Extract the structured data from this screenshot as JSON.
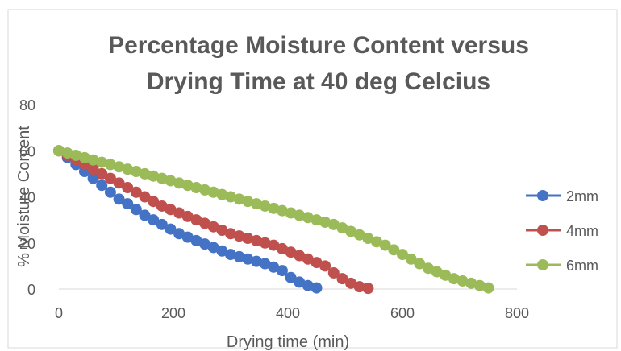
{
  "chart_data": {
    "type": "scatter",
    "title": "Percentage Moisture Content versus Drying Time at 40 deg Celcius",
    "title_lines": [
      "Percentage Moisture Content versus",
      "Drying Time at 40 deg Celcius"
    ],
    "xlabel": "Drying time (min)",
    "ylabel": "% Moisture Content",
    "xlim": [
      0,
      800
    ],
    "ylim": [
      0,
      80
    ],
    "x_ticks": [
      "0",
      "200",
      "400",
      "600",
      "800"
    ],
    "y_ticks": [
      "0",
      "20",
      "40",
      "60",
      "80"
    ],
    "grid": false,
    "legend_position": "right",
    "series": [
      {
        "name": "2mm",
        "color": "#4472C4",
        "x": [
          0,
          15,
          30,
          45,
          60,
          75,
          90,
          105,
          120,
          135,
          150,
          165,
          180,
          195,
          210,
          225,
          240,
          255,
          270,
          285,
          300,
          315,
          330,
          345,
          360,
          375,
          390,
          405,
          420,
          435,
          450
        ],
        "y": [
          60,
          57,
          54,
          51,
          48,
          45,
          42,
          39,
          37,
          34.5,
          32,
          30,
          28,
          26,
          24,
          22.5,
          21,
          19.5,
          18,
          16.5,
          15,
          14,
          13,
          12,
          11,
          9.5,
          8,
          5,
          3,
          1.5,
          0.5
        ]
      },
      {
        "name": "4mm",
        "color": "#C0504D",
        "x": [
          0,
          15,
          30,
          45,
          60,
          75,
          90,
          105,
          120,
          135,
          150,
          165,
          180,
          195,
          210,
          225,
          240,
          255,
          270,
          285,
          300,
          315,
          330,
          345,
          360,
          375,
          390,
          405,
          420,
          435,
          450,
          465,
          480,
          495,
          510,
          525,
          540
        ],
        "y": [
          60,
          58,
          56,
          54,
          52,
          50,
          48,
          46,
          44,
          42,
          40,
          38,
          36,
          34.5,
          33,
          31.5,
          30,
          28.5,
          27,
          25.5,
          24,
          23,
          22,
          21,
          20,
          19,
          17.5,
          16,
          14.5,
          13,
          11.5,
          10,
          7,
          4.5,
          2.5,
          1,
          0.3
        ]
      },
      {
        "name": "6mm",
        "color": "#9BBB59",
        "x": [
          0,
          15,
          30,
          45,
          60,
          75,
          90,
          105,
          120,
          135,
          150,
          165,
          180,
          195,
          210,
          225,
          240,
          255,
          270,
          285,
          300,
          315,
          330,
          345,
          360,
          375,
          390,
          405,
          420,
          435,
          450,
          465,
          480,
          495,
          510,
          525,
          540,
          555,
          570,
          585,
          600,
          615,
          630,
          645,
          660,
          675,
          690,
          705,
          720,
          735,
          750
        ],
        "y": [
          60,
          59,
          58,
          57,
          56,
          55,
          54,
          53,
          52,
          51,
          50,
          49,
          48,
          47,
          46,
          45,
          44,
          43,
          42,
          41,
          40,
          39,
          38,
          37,
          36,
          35,
          34,
          33,
          32,
          31,
          30,
          29,
          28,
          26.5,
          25,
          23.5,
          22,
          20.5,
          19,
          17,
          15,
          13,
          11,
          9,
          7.5,
          6,
          4.5,
          3.5,
          2.5,
          1.5,
          0.5
        ]
      }
    ]
  }
}
